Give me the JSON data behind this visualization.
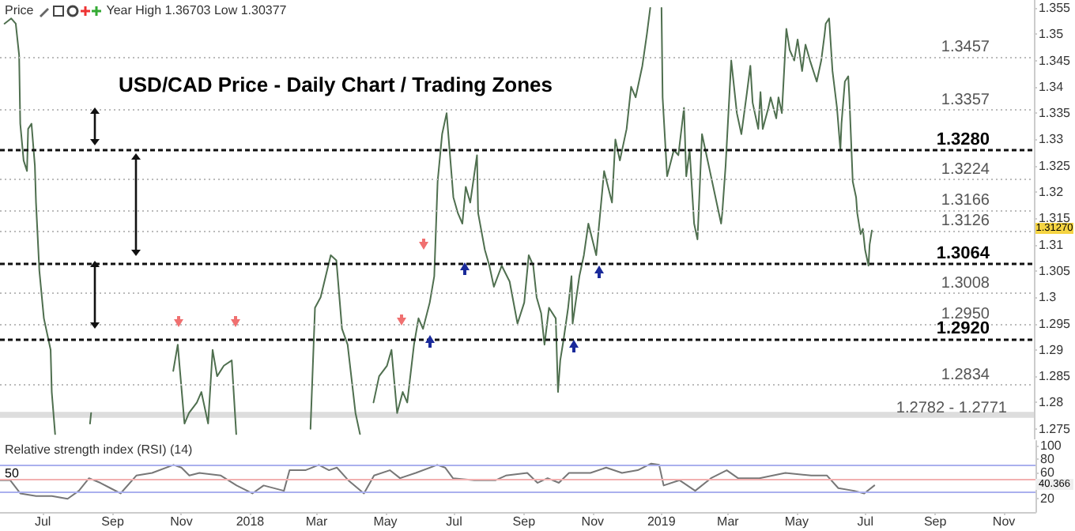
{
  "chart_data": [
    {
      "type": "line",
      "title": "USD/CAD Price - Daily Chart / Trading Zones",
      "annotations": [
        "Price",
        "Year High 1.36703 Low 1.30377",
        "1.31270"
      ],
      "tick_labels": "y",
      "marker": "none",
      "line_style": "solid",
      "xlim": [
        "2017-05-24",
        "2019-11-29"
      ],
      "ylim": [
        1.273,
        1.3565
      ],
      "yticks": [
        1.275,
        1.28,
        1.285,
        1.29,
        1.295,
        1.3,
        1.305,
        1.31,
        1.315,
        1.32,
        1.325,
        1.33,
        1.335,
        1.34,
        1.345,
        1.35,
        1.355
      ],
      "ref_lines": [
        {
          "axis": "y",
          "value": 1.3457,
          "label": "1.3457",
          "color": "#bbbbbb",
          "line_style": "dotted"
        },
        {
          "axis": "y",
          "value": 1.3357,
          "label": "1.3357",
          "color": "#bbbbbb",
          "line_style": "dotted"
        },
        {
          "axis": "y",
          "value": 1.328,
          "label": "1.3280",
          "color": "#111111",
          "line_style": "dashed"
        },
        {
          "axis": "y",
          "value": 1.3224,
          "label": "1.3224",
          "color": "#bbbbbb",
          "line_style": "dotted"
        },
        {
          "axis": "y",
          "value": 1.3166,
          "label": "1.3166",
          "color": "#bbbbbb",
          "line_style": "dotted"
        },
        {
          "axis": "y",
          "value": 1.3126,
          "label": "1.3126",
          "color": "#bbbbbb",
          "line_style": "dotted"
        },
        {
          "axis": "y",
          "value": 1.3064,
          "label": "1.3064",
          "color": "#111111",
          "line_style": "dashed"
        },
        {
          "axis": "y",
          "value": 1.3008,
          "label": "1.3008",
          "color": "#bbbbbb",
          "line_style": "dotted"
        },
        {
          "axis": "y",
          "value": 1.295,
          "label": "1.2950",
          "color": "#bbbbbb",
          "line_style": "dotted"
        },
        {
          "axis": "y",
          "value": 1.292,
          "label": "1.2920",
          "color": "#111111",
          "line_style": "dashed"
        },
        {
          "axis": "y",
          "value": 1.2834,
          "label": "1.2834",
          "color": "#bbbbbb",
          "line_style": "dotted"
        }
      ],
      "bands": [
        {
          "axis": "y",
          "from": 1.2771,
          "to": 1.2782,
          "label": "1.2782 - 1.2771",
          "color": "#dddddd"
        }
      ],
      "x": [
        "2017-05-28",
        "2017-06-03",
        "2017-06-07",
        "2017-06-10",
        "2017-06-11",
        "2017-06-14",
        "2017-06-17",
        "2017-06-18",
        "2017-06-21",
        "2017-06-24",
        "2017-06-25",
        "2017-06-28",
        "2017-07-02",
        "2017-07-08",
        "2017-07-09",
        "2017-07-12",
        "2017-07-13",
        "2017-08-12",
        "2017-08-13",
        "2017-08-16",
        "2017-10-25",
        "2017-10-29",
        "2017-11-04",
        "2017-11-08",
        "2017-11-15",
        "2017-11-19",
        "2017-11-25",
        "2017-11-29",
        "2017-12-03",
        "2017-12-09",
        "2017-12-16",
        "2017-12-20",
        "2017-12-22",
        "2018-02-24",
        "2018-02-28",
        "2018-03-05",
        "2018-03-14",
        "2018-03-19",
        "2018-03-24",
        "2018-03-29",
        "2018-04-05",
        "2018-04-09",
        "2018-04-11",
        "2018-04-21",
        "2018-04-26",
        "2018-05-03",
        "2018-05-07",
        "2018-05-12",
        "2018-05-17",
        "2018-05-21",
        "2018-05-27",
        "2018-05-31",
        "2018-06-04",
        "2018-06-10",
        "2018-06-14",
        "2018-06-17",
        "2018-06-21",
        "2018-06-25",
        "2018-06-28",
        "2018-07-01",
        "2018-07-05",
        "2018-07-09",
        "2018-07-12",
        "2018-07-16",
        "2018-07-22",
        "2018-07-23",
        "2018-07-29",
        "2018-08-02",
        "2018-08-06",
        "2018-08-13",
        "2018-08-20",
        "2018-08-27",
        "2018-09-02",
        "2018-09-06",
        "2018-09-10",
        "2018-09-13",
        "2018-09-17",
        "2018-09-20",
        "2018-09-24",
        "2018-09-30",
        "2018-10-02",
        "2018-10-04",
        "2018-10-07",
        "2018-10-11",
        "2018-10-14",
        "2018-10-15",
        "2018-10-21",
        "2018-10-25",
        "2018-10-29",
        "2018-11-05",
        "2018-11-12",
        "2018-11-19",
        "2018-11-22",
        "2018-11-26",
        "2018-12-02",
        "2018-12-06",
        "2018-12-10",
        "2018-12-16",
        "2018-12-20",
        "2018-12-23",
        "2018-12-28",
        "2019-01-02",
        "2019-01-03",
        "2019-01-07",
        "2019-01-13",
        "2019-01-17",
        "2019-01-22",
        "2019-01-24",
        "2019-01-27",
        "2019-01-31",
        "2019-02-03",
        "2019-02-07",
        "2019-02-10",
        "2019-02-14",
        "2019-02-18",
        "2019-02-24",
        "2019-02-25",
        "2019-02-28",
        "2019-03-05",
        "2019-03-10",
        "2019-03-14",
        "2019-03-19",
        "2019-03-22",
        "2019-03-24",
        "2019-03-29",
        "2019-03-31",
        "2019-04-02",
        "2019-04-07",
        "2019-04-09",
        "2019-04-14",
        "2019-04-16",
        "2019-04-19",
        "2019-04-23",
        "2019-04-26",
        "2019-04-30",
        "2019-05-03",
        "2019-05-07",
        "2019-05-10",
        "2019-05-14",
        "2019-05-20",
        "2019-05-24",
        "2019-05-27",
        "2019-05-28",
        "2019-05-31",
        "2019-06-03",
        "2019-06-07",
        "2019-06-10",
        "2019-06-11",
        "2019-06-14",
        "2019-06-17",
        "2019-06-18",
        "2019-06-21",
        "2019-06-24",
        "2019-06-25",
        "2019-06-28",
        "2019-06-30",
        "2019-07-02",
        "2019-07-05",
        "2019-07-06",
        "2019-07-08"
      ],
      "series": [
        {
          "color": "#4f6f4f",
          "values": [
            1.352,
            1.353,
            1.352,
            1.346,
            1.333,
            1.326,
            1.324,
            1.332,
            1.333,
            1.325,
            1.318,
            1.305,
            1.296,
            1.29,
            1.282,
            1.274,
            null,
            1.276,
            1.278,
            null,
            1.286,
            1.291,
            1.276,
            1.278,
            1.28,
            1.282,
            1.276,
            1.29,
            1.285,
            1.287,
            1.288,
            1.274,
            null,
            1.275,
            1.298,
            1.3,
            1.308,
            1.307,
            1.294,
            1.291,
            1.278,
            1.274,
            null,
            1.28,
            1.285,
            1.287,
            1.29,
            1.278,
            1.282,
            1.28,
            1.291,
            1.296,
            1.294,
            1.299,
            1.304,
            1.322,
            1.331,
            1.335,
            1.327,
            1.319,
            1.316,
            1.314,
            1.321,
            1.318,
            1.327,
            1.316,
            1.309,
            1.306,
            1.302,
            1.306,
            1.303,
            1.295,
            1.299,
            1.308,
            1.306,
            1.3,
            1.297,
            1.291,
            1.298,
            1.296,
            1.282,
            1.288,
            1.292,
            1.298,
            1.304,
            1.295,
            1.304,
            1.308,
            1.314,
            1.308,
            1.324,
            1.318,
            1.33,
            1.326,
            1.332,
            1.34,
            1.338,
            1.344,
            1.35,
            1.355,
            null,
            1.355,
            1.338,
            1.323,
            1.328,
            1.327,
            1.336,
            1.323,
            1.328,
            1.314,
            1.311,
            1.331,
            1.328,
            1.324,
            1.32,
            1.314,
            1.316,
            1.325,
            1.345,
            1.335,
            1.331,
            1.339,
            1.344,
            1.337,
            1.332,
            1.339,
            1.332,
            1.336,
            1.338,
            1.334,
            1.338,
            1.335,
            1.351,
            1.347,
            1.345,
            1.349,
            1.343,
            1.348,
            1.345,
            1.341,
            1.345,
            1.35,
            1.352,
            1.353,
            1.343,
            1.336,
            1.328,
            1.333,
            1.341,
            1.342,
            1.338,
            1.322,
            1.319,
            1.316,
            1.312,
            1.313,
            1.309,
            1.306,
            1.31,
            1.3127
          ]
        }
      ]
    },
    {
      "type": "line",
      "annotations": [
        "Relative strength index (RSI) (14)",
        "50",
        "40.366"
      ],
      "marker": "none",
      "line_style": "solid",
      "xlim": [
        "2017-05-24",
        "2019-11-29"
      ],
      "xticks": [
        {
          "value": "2017-07-01",
          "label": "Jul"
        },
        {
          "value": "2017-09-01",
          "label": "Sep"
        },
        {
          "value": "2017-11-01",
          "label": "Nov"
        },
        {
          "value": "2018-01-01",
          "label": "2018"
        },
        {
          "value": "2018-03-01",
          "label": "Mar"
        },
        {
          "value": "2018-05-01",
          "label": "May"
        },
        {
          "value": "2018-07-01",
          "label": "Jul"
        },
        {
          "value": "2018-09-01",
          "label": "Sep"
        },
        {
          "value": "2018-11-01",
          "label": "Nov"
        },
        {
          "value": "2019-01-01",
          "label": "2019"
        },
        {
          "value": "2019-03-01",
          "label": "Mar"
        },
        {
          "value": "2019-05-01",
          "label": "May"
        },
        {
          "value": "2019-07-01",
          "label": "Jul"
        },
        {
          "value": "2019-09-01",
          "label": "Sep"
        },
        {
          "value": "2019-11-01",
          "label": "Nov"
        }
      ],
      "ylim": [
        0,
        107
      ],
      "yticks": [
        20,
        60,
        80,
        100
      ],
      "ref_lines": [
        {
          "axis": "y",
          "value": 70,
          "color": "#aab0ee",
          "line_style": "solid"
        },
        {
          "axis": "y",
          "value": 50,
          "color": "#f2b0b0",
          "line_style": "solid"
        },
        {
          "axis": "y",
          "value": 30,
          "color": "#aab0ee",
          "line_style": "solid"
        }
      ],
      "x": [
        "2017-05-24",
        "2017-06-02",
        "2017-06-11",
        "2017-06-25",
        "2017-07-09",
        "2017-07-23",
        "2017-08-02",
        "2017-08-11",
        "2017-08-21",
        "2017-08-30",
        "2017-09-08",
        "2017-09-22",
        "2017-10-06",
        "2017-10-25",
        "2017-11-01",
        "2017-11-08",
        "2017-11-17",
        "2017-12-06",
        "2017-12-20",
        "2018-01-03",
        "2018-01-13",
        "2018-01-31",
        "2018-02-05",
        "2018-02-19",
        "2018-03-03",
        "2018-03-12",
        "2018-03-19",
        "2018-03-29",
        "2018-04-12",
        "2018-04-21",
        "2018-05-05",
        "2018-05-14",
        "2018-05-28",
        "2018-06-16",
        "2018-06-23",
        "2018-06-30",
        "2018-07-19",
        "2018-08-07",
        "2018-08-16",
        "2018-09-04",
        "2018-09-13",
        "2018-09-22",
        "2018-10-02",
        "2018-10-11",
        "2018-10-30",
        "2018-11-13",
        "2018-11-27",
        "2018-12-11",
        "2018-12-23",
        "2018-12-30",
        "2019-01-03",
        "2019-01-17",
        "2019-01-31",
        "2019-02-14",
        "2019-02-28",
        "2019-03-10",
        "2019-03-29",
        "2019-04-21",
        "2019-05-14",
        "2019-05-28",
        "2019-06-07",
        "2019-06-21",
        "2019-06-30",
        "2019-07-09"
      ],
      "series": [
        {
          "color": "#777777",
          "values": [
            48,
            48,
            28,
            24,
            24,
            20,
            32,
            51,
            44,
            36,
            28,
            55,
            59,
            71,
            67,
            55,
            59,
            55,
            40,
            28,
            40,
            32,
            63,
            63,
            71,
            63,
            67,
            48,
            28,
            55,
            63,
            51,
            59,
            71,
            67,
            51,
            48,
            48,
            55,
            59,
            44,
            51,
            44,
            59,
            59,
            67,
            59,
            63,
            73,
            71,
            40,
            48,
            32,
            51,
            63,
            51,
            51,
            59,
            55,
            55,
            36,
            32,
            28,
            40
          ]
        }
      ]
    }
  ]
}
